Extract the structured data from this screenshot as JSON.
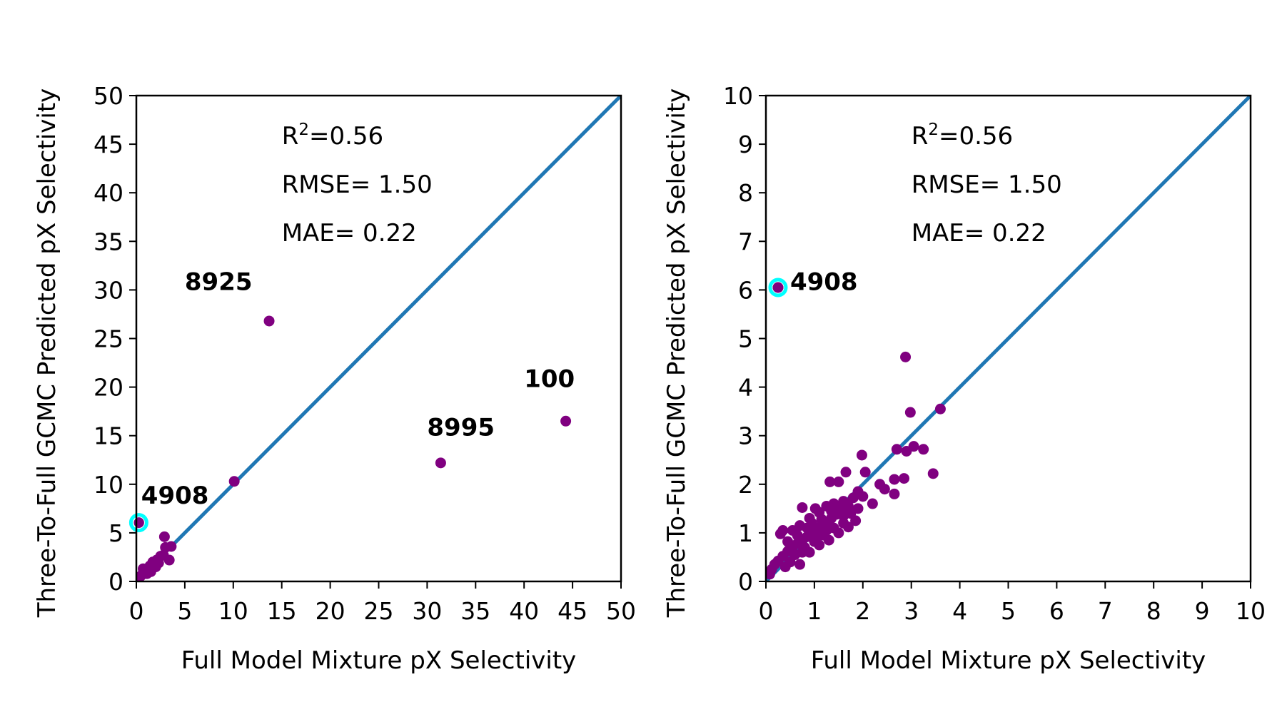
{
  "chart_data": [
    {
      "type": "scatter",
      "title": "",
      "xlabel": "Full Model Mixture pX Selectivity",
      "ylabel": "Three-To-Full GCMC Predicted pX Selectivity",
      "xlim": [
        0,
        50
      ],
      "ylim": [
        0,
        50
      ],
      "xticks": [
        "0",
        "5",
        "10",
        "15",
        "20",
        "25",
        "30",
        "35",
        "40",
        "45",
        "50"
      ],
      "yticks": [
        "0",
        "5",
        "10",
        "15",
        "20",
        "25",
        "30",
        "35",
        "40",
        "45",
        "50"
      ],
      "grid": false,
      "stats": {
        "r2_prefix": "R",
        "r2_sup": "2",
        "r2_value": "=0.56",
        "rmse": "RMSE= 1.50",
        "mae": "MAE= 0.22"
      },
      "stats_anchor": [
        15,
        45
      ],
      "reference_line": {
        "from": [
          0,
          0
        ],
        "to": [
          50,
          50
        ],
        "color": "#1f77b4"
      },
      "colors": {
        "points": "#800080",
        "highlight": "#00ffff"
      },
      "highlight_point": {
        "x": 0.25,
        "y": 6.05
      },
      "labeled_points": [
        {
          "label": "8925",
          "x": 13.7,
          "y": 26.8,
          "label_at": [
            5,
            30
          ]
        },
        {
          "label": "100",
          "x": 44.3,
          "y": 16.5,
          "label_at": [
            40,
            20
          ]
        },
        {
          "label": "8995",
          "x": 31.4,
          "y": 12.2,
          "label_at": [
            30,
            15
          ]
        },
        {
          "label": "4908",
          "x": 0.25,
          "y": 6.05,
          "label_at": [
            0.5,
            8
          ]
        }
      ],
      "points": [
        [
          10.1,
          10.3
        ],
        [
          2.9,
          4.6
        ],
        [
          3.6,
          3.6
        ],
        [
          3.0,
          3.5
        ],
        [
          3.4,
          2.2
        ],
        [
          2.8,
          2.7
        ],
        [
          2.5,
          2.6
        ],
        [
          2.1,
          2.2
        ],
        [
          1.7,
          2.0
        ],
        [
          1.4,
          1.6
        ],
        [
          1.2,
          1.3
        ],
        [
          1.0,
          1.0
        ],
        [
          0.8,
          0.9
        ],
        [
          0.6,
          0.7
        ],
        [
          0.4,
          0.5
        ],
        [
          0.3,
          0.4
        ],
        [
          0.2,
          0.3
        ],
        [
          1.5,
          1.0
        ],
        [
          2.0,
          1.5
        ],
        [
          1.1,
          0.8
        ],
        [
          0.7,
          1.3
        ],
        [
          1.8,
          1.6
        ],
        [
          2.3,
          1.9
        ],
        [
          0.9,
          1.1
        ]
      ]
    },
    {
      "type": "scatter",
      "title": "",
      "xlabel": "Full Model Mixture pX Selectivity",
      "ylabel": "Three-To-Full GCMC Predicted pX Selectivity",
      "xlim": [
        0,
        10
      ],
      "ylim": [
        0,
        10
      ],
      "xticks": [
        "0",
        "1",
        "2",
        "3",
        "4",
        "5",
        "6",
        "7",
        "8",
        "9",
        "10"
      ],
      "yticks": [
        "0",
        "1",
        "2",
        "3",
        "4",
        "5",
        "6",
        "7",
        "8",
        "9",
        "10"
      ],
      "grid": false,
      "stats": {
        "r2_prefix": "R",
        "r2_sup": "2",
        "r2_value": "=0.56",
        "rmse": "RMSE= 1.50",
        "mae": "MAE= 0.22"
      },
      "stats_anchor": [
        3,
        9
      ],
      "reference_line": {
        "from": [
          0,
          0
        ],
        "to": [
          10,
          10
        ],
        "color": "#1f77b4"
      },
      "colors": {
        "points": "#800080",
        "highlight": "#00ffff"
      },
      "highlight_point": {
        "x": 0.25,
        "y": 6.05
      },
      "labeled_points": [
        {
          "label": "4908",
          "x": 0.25,
          "y": 6.05,
          "label_at": [
            0.5,
            6.0
          ]
        }
      ],
      "points": [
        [
          0.25,
          6.05
        ],
        [
          2.88,
          4.62
        ],
        [
          3.6,
          3.55
        ],
        [
          2.98,
          3.48
        ],
        [
          2.7,
          2.72
        ],
        [
          2.9,
          2.68
        ],
        [
          3.05,
          2.78
        ],
        [
          3.25,
          2.72
        ],
        [
          3.45,
          2.22
        ],
        [
          2.85,
          2.12
        ],
        [
          2.65,
          2.1
        ],
        [
          2.35,
          2.0
        ],
        [
          2.45,
          1.9
        ],
        [
          2.65,
          1.8
        ],
        [
          1.98,
          2.6
        ],
        [
          2.05,
          2.25
        ],
        [
          1.65,
          2.25
        ],
        [
          1.32,
          2.05
        ],
        [
          1.5,
          2.05
        ],
        [
          1.9,
          1.85
        ],
        [
          2.0,
          1.75
        ],
        [
          1.8,
          1.72
        ],
        [
          1.6,
          1.65
        ],
        [
          1.7,
          1.55
        ],
        [
          1.9,
          1.5
        ],
        [
          1.55,
          1.45
        ],
        [
          1.45,
          1.38
        ],
        [
          1.35,
          1.3
        ],
        [
          1.25,
          1.22
        ],
        [
          1.15,
          1.15
        ],
        [
          1.05,
          1.08
        ],
        [
          0.95,
          1.0
        ],
        [
          0.85,
          0.92
        ],
        [
          0.75,
          0.85
        ],
        [
          0.65,
          0.78
        ],
        [
          0.55,
          0.7
        ],
        [
          0.45,
          0.62
        ],
        [
          0.35,
          0.52
        ],
        [
          0.25,
          0.42
        ],
        [
          0.18,
          0.35
        ],
        [
          0.12,
          0.25
        ],
        [
          0.08,
          0.15
        ],
        [
          0.3,
          0.98
        ],
        [
          0.35,
          1.05
        ],
        [
          0.75,
          1.52
        ],
        [
          1.02,
          1.5
        ],
        [
          1.25,
          1.55
        ],
        [
          1.4,
          1.6
        ],
        [
          0.7,
          0.35
        ],
        [
          0.9,
          0.6
        ],
        [
          1.1,
          0.75
        ],
        [
          1.3,
          0.85
        ],
        [
          1.5,
          1.0
        ],
        [
          1.7,
          1.12
        ],
        [
          1.85,
          1.25
        ],
        [
          1.6,
          1.2
        ],
        [
          1.2,
          0.95
        ],
        [
          1.0,
          0.82
        ],
        [
          0.8,
          0.7
        ],
        [
          0.6,
          0.55
        ],
        [
          0.5,
          0.4
        ],
        [
          0.4,
          0.3
        ],
        [
          0.9,
          1.3
        ],
        [
          1.1,
          1.42
        ],
        [
          0.7,
          1.15
        ],
        [
          0.55,
          1.05
        ],
        [
          1.4,
          1.1
        ],
        [
          1.6,
          1.35
        ],
        [
          0.95,
          1.2
        ],
        [
          1.15,
          1.28
        ],
        [
          1.35,
          1.45
        ],
        [
          0.85,
          1.1
        ],
        [
          0.65,
          0.95
        ],
        [
          0.45,
          0.82
        ],
        [
          1.75,
          1.4
        ],
        [
          1.55,
          1.5
        ],
        [
          1.05,
          0.9
        ],
        [
          1.25,
          1.05
        ],
        [
          0.75,
          0.6
        ],
        [
          2.2,
          1.6
        ]
      ]
    }
  ]
}
